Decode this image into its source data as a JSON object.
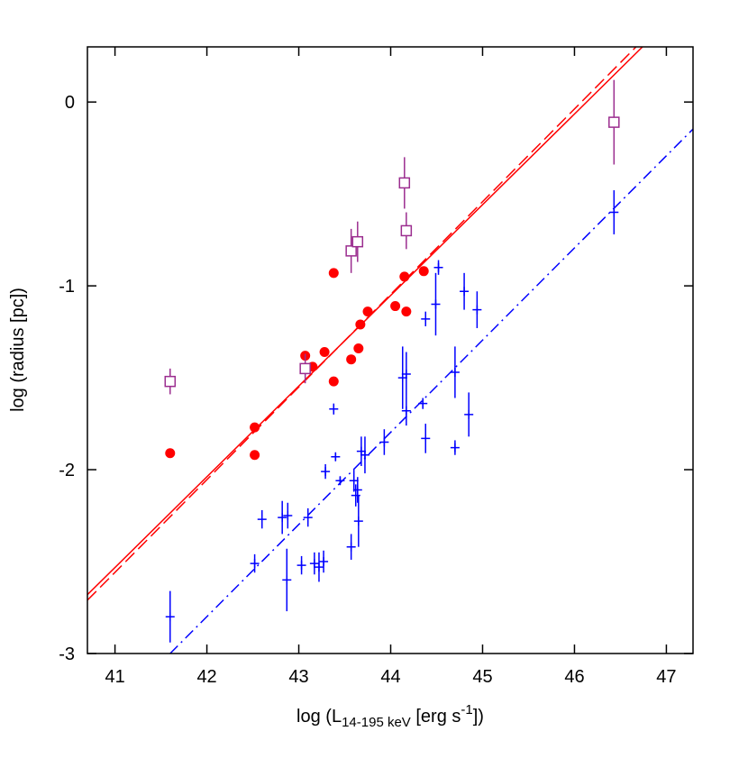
{
  "chart_data": {
    "type": "scatter",
    "xlabel_parts": [
      "log (L",
      "14-195 keV",
      " [erg s",
      "-1",
      "])"
    ],
    "ylabel": "log (radius [pc])",
    "xlim": [
      40.7,
      47.29
    ],
    "ylim": [
      -3,
      0.3
    ],
    "xticks": [
      41,
      42,
      43,
      44,
      45,
      46,
      47
    ],
    "yticks": [
      0,
      -1,
      -2,
      -3
    ],
    "grid": false,
    "series": [
      {
        "marker": "filled-circle",
        "color": "#ff0000",
        "x": [
          41.6,
          42.52,
          42.52,
          43.07,
          43.15,
          43.28,
          43.38,
          43.38,
          43.57,
          43.65,
          43.67,
          43.75,
          44.05,
          44.15,
          44.17,
          44.36
        ],
        "values": [
          -1.91,
          -1.77,
          -1.92,
          -1.38,
          -1.44,
          -1.36,
          -0.93,
          -1.52,
          -1.4,
          -1.34,
          -1.21,
          -1.14,
          -1.11,
          -0.95,
          -1.14,
          -0.92
        ]
      },
      {
        "marker": "open-square",
        "color": "#9b2d8f",
        "x": [
          41.6,
          43.07,
          43.57,
          43.64,
          44.15,
          44.17,
          46.43
        ],
        "values": [
          -1.52,
          -1.45,
          -0.81,
          -0.76,
          -0.44,
          -0.7,
          -0.11
        ],
        "errors": [
          0.07,
          0.08,
          0.12,
          0.11,
          0.14,
          0.1,
          0.23
        ]
      },
      {
        "marker": "plus",
        "color": "#0000ff",
        "x": [
          41.6,
          42.52,
          42.6,
          42.82,
          42.87,
          42.88,
          43.03,
          43.1,
          43.17,
          43.22,
          43.27,
          43.29,
          43.38,
          43.4,
          43.45,
          43.57,
          43.6,
          43.62,
          43.64,
          43.65,
          43.68,
          43.72,
          43.93,
          44.13,
          44.17,
          44.17,
          44.35,
          44.38,
          44.38,
          44.49,
          44.52,
          44.7,
          44.7,
          44.8,
          44.85,
          44.94,
          46.43
        ],
        "values": [
          -2.8,
          -2.51,
          -2.27,
          -2.26,
          -2.6,
          -2.25,
          -2.52,
          -2.26,
          -2.51,
          -2.53,
          -2.5,
          -2.01,
          -1.67,
          -1.93,
          -2.06,
          -2.42,
          -2.06,
          -2.14,
          -2.11,
          -2.28,
          -1.9,
          -1.92,
          -1.85,
          -1.5,
          -1.48,
          -1.68,
          -1.64,
          -1.18,
          -1.83,
          -1.1,
          -0.9,
          -1.47,
          -1.88,
          -1.03,
          -1.7,
          -1.13,
          -0.6
        ],
        "errors": [
          0.14,
          0.05,
          0.05,
          0.09,
          0.17,
          0.07,
          0.05,
          0.05,
          0.06,
          0.08,
          0.06,
          0.04,
          0.03,
          0.02,
          0.02,
          0.07,
          0.06,
          0.06,
          0.07,
          0.14,
          0.08,
          0.1,
          0.07,
          0.17,
          0.12,
          0.08,
          0.03,
          0.04,
          0.08,
          0.17,
          0.04,
          0.14,
          0.04,
          0.1,
          0.12,
          0.1,
          0.12
        ]
      }
    ],
    "fit_lines": [
      {
        "color": "#ff0000",
        "style": "solid",
        "x": [
          40.7,
          46.74
        ],
        "values": [
          -2.68,
          0.3
        ]
      },
      {
        "color": "#ff0000",
        "style": "dashed",
        "x": [
          40.7,
          46.67
        ],
        "values": [
          -2.71,
          0.3
        ]
      },
      {
        "color": "#0000ff",
        "style": "dashdot",
        "x": [
          41.6,
          47.29
        ],
        "values": [
          -3,
          -0.147
        ]
      }
    ]
  }
}
